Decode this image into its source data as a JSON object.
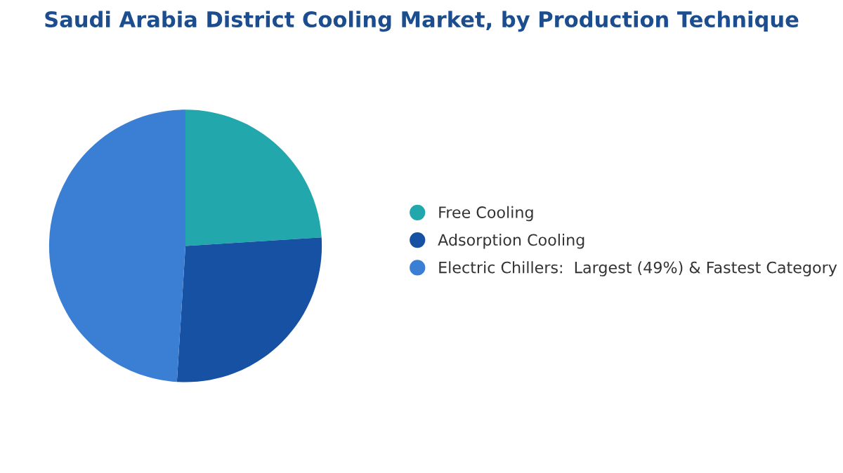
{
  "chart_data": {
    "type": "pie",
    "title": "Saudi Arabia District Cooling Market, by Production Technique",
    "categories": [
      "Free Cooling",
      "Adsorption Cooling",
      "Electric Chillers:  Largest (49%) & Fastest Category"
    ],
    "values": [
      24,
      27,
      49
    ],
    "colors": [
      "#22a7ad",
      "#1651a3",
      "#3a7fd4"
    ],
    "legend": "right"
  }
}
